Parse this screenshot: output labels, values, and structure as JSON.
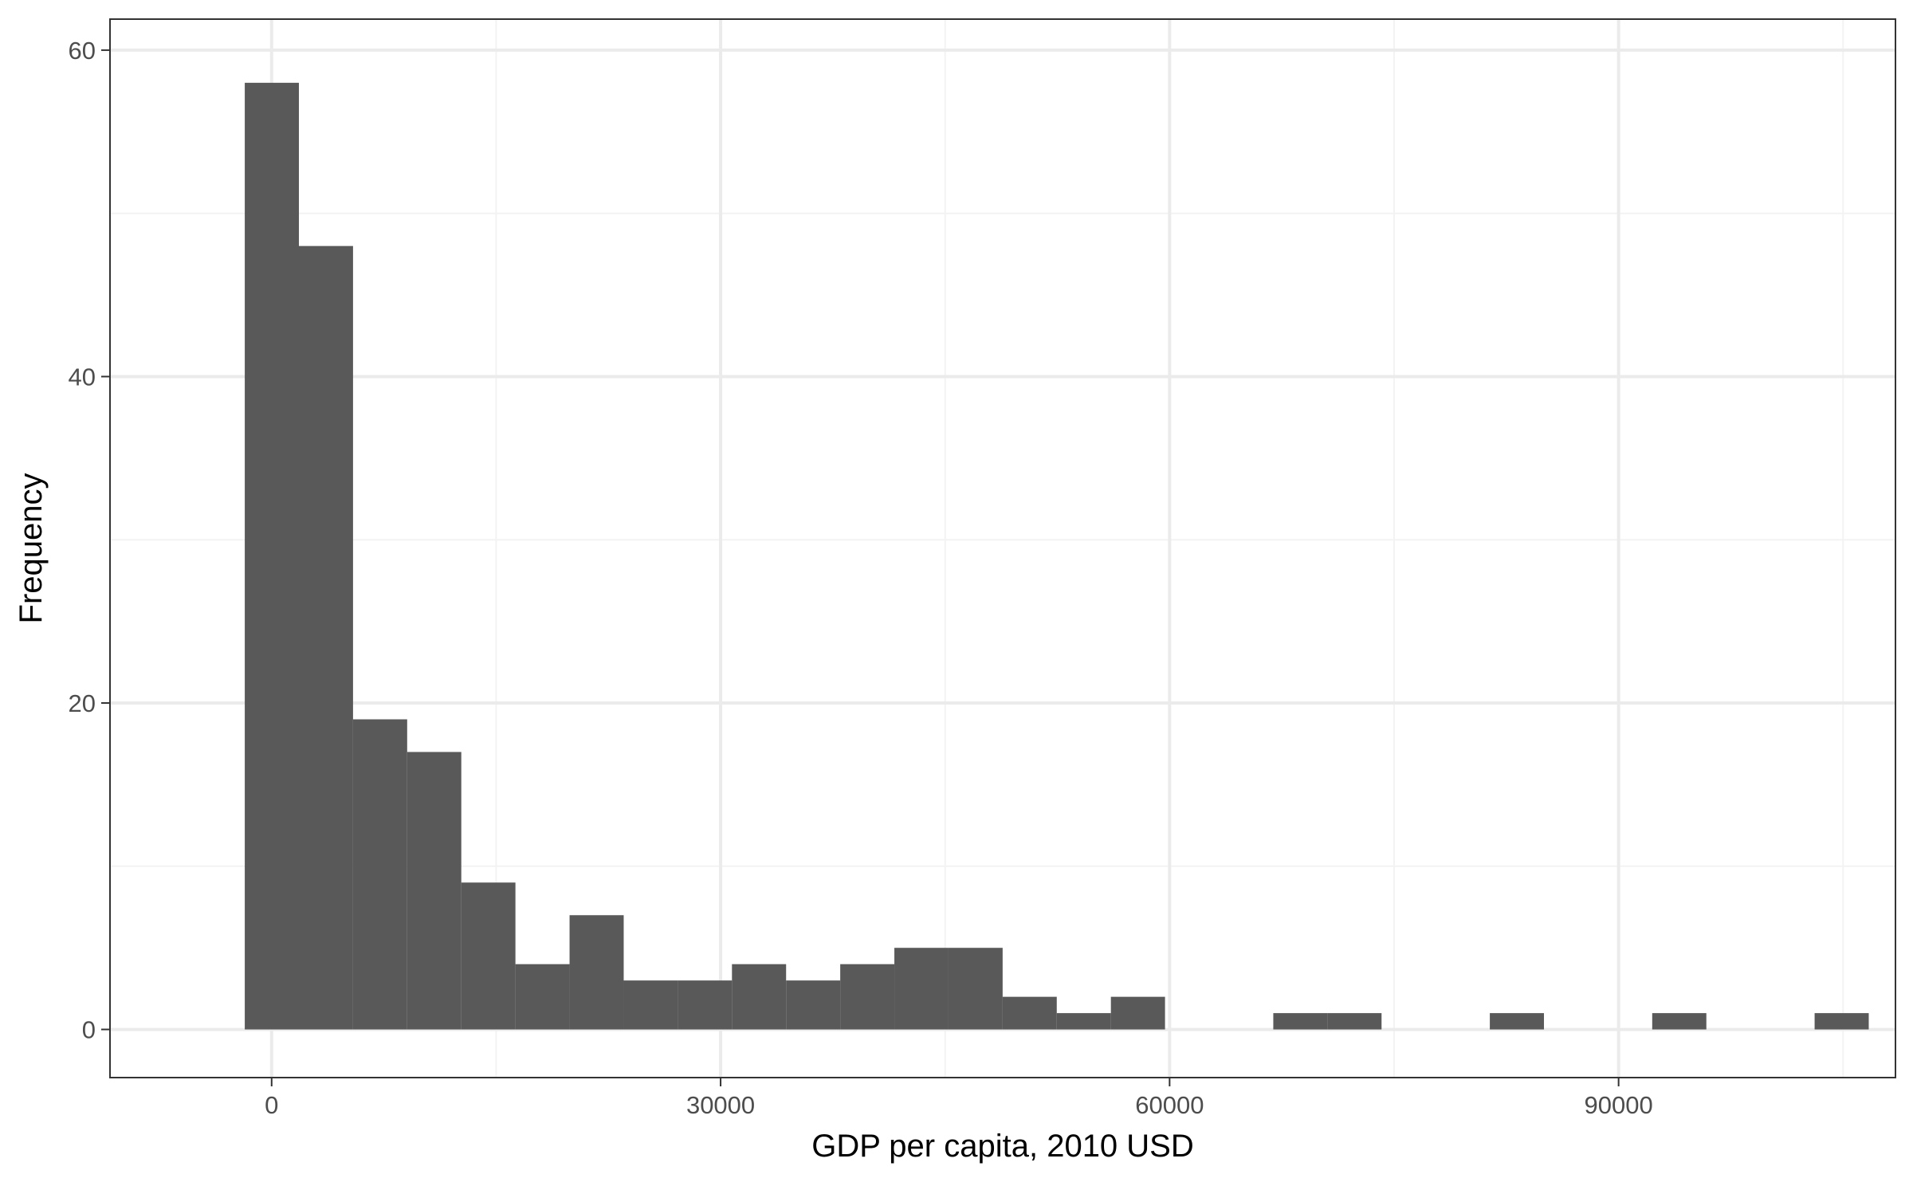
{
  "chart_data": {
    "type": "bar",
    "subtype": "histogram",
    "title": "",
    "xlabel": "GDP per capita, 2010 USD",
    "ylabel": "Frequency",
    "xlim": [
      -10800,
      108500
    ],
    "ylim": [
      -2.95,
      61.9
    ],
    "x_ticks": [
      0,
      30000,
      60000,
      90000
    ],
    "x_tick_labels": [
      "0",
      "30000",
      "60000",
      "90000"
    ],
    "y_ticks": [
      0,
      20,
      40,
      60
    ],
    "y_tick_labels": [
      "0",
      "20",
      "40",
      "60"
    ],
    "x_minor_ticks": [
      15000,
      45000,
      75000,
      105000
    ],
    "y_minor_ticks": [
      10,
      30,
      50
    ],
    "bin_width": 3617,
    "bins": [
      {
        "x0": -1795,
        "x1": 1822,
        "count": 58
      },
      {
        "x0": 1822,
        "x1": 5439,
        "count": 48
      },
      {
        "x0": 5439,
        "x1": 9056,
        "count": 19
      },
      {
        "x0": 9056,
        "x1": 12673,
        "count": 17
      },
      {
        "x0": 12673,
        "x1": 16290,
        "count": 9
      },
      {
        "x0": 16290,
        "x1": 19907,
        "count": 4
      },
      {
        "x0": 19907,
        "x1": 23524,
        "count": 7
      },
      {
        "x0": 23524,
        "x1": 27141,
        "count": 3
      },
      {
        "x0": 27141,
        "x1": 30758,
        "count": 3
      },
      {
        "x0": 30758,
        "x1": 34375,
        "count": 4
      },
      {
        "x0": 34375,
        "x1": 37992,
        "count": 3
      },
      {
        "x0": 37992,
        "x1": 41609,
        "count": 4
      },
      {
        "x0": 41609,
        "x1": 45226,
        "count": 5
      },
      {
        "x0": 45226,
        "x1": 48843,
        "count": 5
      },
      {
        "x0": 48843,
        "x1": 52460,
        "count": 2
      },
      {
        "x0": 52460,
        "x1": 56077,
        "count": 1
      },
      {
        "x0": 56077,
        "x1": 59694,
        "count": 2
      },
      {
        "x0": 59694,
        "x1": 63311,
        "count": 0
      },
      {
        "x0": 63311,
        "x1": 66928,
        "count": 0
      },
      {
        "x0": 66928,
        "x1": 70545,
        "count": 1
      },
      {
        "x0": 70545,
        "x1": 74162,
        "count": 1
      },
      {
        "x0": 74162,
        "x1": 77779,
        "count": 0
      },
      {
        "x0": 77779,
        "x1": 81396,
        "count": 0
      },
      {
        "x0": 81396,
        "x1": 85013,
        "count": 1
      },
      {
        "x0": 85013,
        "x1": 88630,
        "count": 0
      },
      {
        "x0": 88630,
        "x1": 92247,
        "count": 0
      },
      {
        "x0": 92247,
        "x1": 95864,
        "count": 1
      },
      {
        "x0": 95864,
        "x1": 99481,
        "count": 0
      },
      {
        "x0": 99481,
        "x1": 103098,
        "count": 0
      },
      {
        "x0": 103098,
        "x1": 106715,
        "count": 1
      }
    ],
    "bar_color": "#595959",
    "grid": true,
    "grid_major_color": "#ebebeb",
    "grid_minor_color": "#f3f3f3",
    "panel_border_color": "#333333",
    "legend": "none"
  }
}
